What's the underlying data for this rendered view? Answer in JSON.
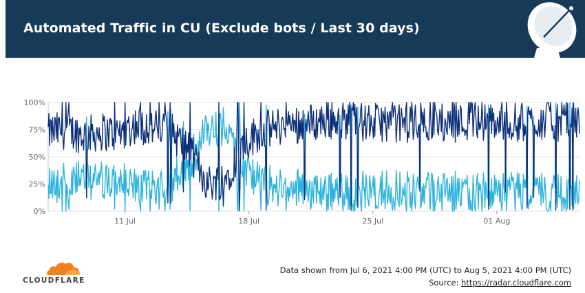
{
  "header": {
    "title": "Automated Traffic in CU (Exclude bots / Last 30 days)",
    "background": "#173a59"
  },
  "chart_data": {
    "type": "line",
    "title": "Automated Traffic in CU (Exclude bots / Last 30 days)",
    "x_range": [
      "2021-07-06 16:00",
      "2021-08-05 16:00"
    ],
    "x_ticks": [
      "11 Jul",
      "18 Jul",
      "25 Jul",
      "01 Aug"
    ],
    "y_ticks": [
      "0%",
      "25%",
      "50%",
      "75%",
      "100%"
    ],
    "ylim": [
      0,
      100
    ],
    "grid": true,
    "legend": "none",
    "series": [
      {
        "color": "#0d2f7a",
        "approx_daily_mean_pct": [
          72,
          75,
          70,
          73,
          72,
          80,
          76,
          72,
          55,
          25,
          30,
          62,
          74,
          78,
          80,
          82,
          84,
          83,
          81,
          82,
          80,
          82,
          82,
          81,
          83,
          82,
          81,
          82,
          83,
          82
        ]
      },
      {
        "color": "#2db3dd",
        "approx_daily_mean_pct": [
          28,
          25,
          30,
          27,
          28,
          20,
          24,
          28,
          45,
          75,
          70,
          38,
          26,
          22,
          20,
          18,
          16,
          17,
          19,
          18,
          20,
          18,
          18,
          19,
          17,
          18,
          19,
          18,
          17,
          18
        ]
      }
    ]
  },
  "footer": {
    "date_range": "Data shown from Jul 6, 2021 4:00 PM (UTC) to Aug 5, 2021 4:00 PM (UTC)",
    "source_label": "Source:",
    "source_link": "https://radar.cloudflare.com"
  },
  "logo": {
    "text": "CLOUDFLARE",
    "color": "#f38020"
  }
}
